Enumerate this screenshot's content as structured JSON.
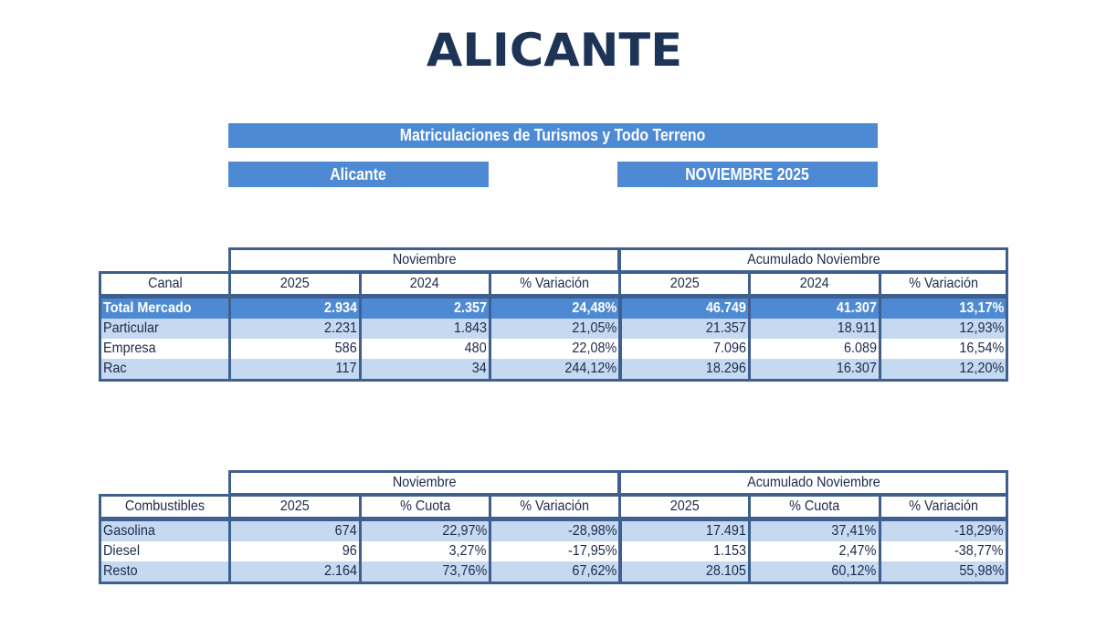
{
  "page": {
    "title": "ALICANTE"
  },
  "banners": {
    "title": "Matriculaciones de Turismos y Todo Terreno",
    "region": "Alicante",
    "period": "NOVIEMBRE 2025"
  },
  "colors": {
    "title_text": "#1e3457",
    "banner_bg": "#4e8ad4",
    "border": "#3f5f8e",
    "total_row_bg": "#4e8ad4",
    "alt_row_bg": "#c5d9f1"
  },
  "canal_table": {
    "groups": [
      "Noviembre",
      "Acumulado Noviembre"
    ],
    "columns": [
      "Canal",
      "2025",
      "2024",
      "% Variación",
      "2025",
      "2024",
      "% Variación"
    ],
    "rows": [
      {
        "label": "Total Mercado",
        "values": [
          "2.934",
          "2.357",
          "24,48%",
          "46.749",
          "41.307",
          "13,17%"
        ]
      },
      {
        "label": "Particular",
        "values": [
          "2.231",
          "1.843",
          "21,05%",
          "21.357",
          "18.911",
          "12,93%"
        ]
      },
      {
        "label": "Empresa",
        "values": [
          "586",
          "480",
          "22,08%",
          "7.096",
          "6.089",
          "16,54%"
        ]
      },
      {
        "label": "Rac",
        "values": [
          "117",
          "34",
          "244,12%",
          "18.296",
          "16.307",
          "12,20%"
        ]
      }
    ]
  },
  "fuel_table": {
    "groups": [
      "Noviembre",
      "Acumulado Noviembre"
    ],
    "columns": [
      "Combustibles",
      "2025",
      "% Cuota",
      "% Variación",
      "2025",
      "% Cuota",
      "% Variación"
    ],
    "rows": [
      {
        "label": "Gasolina",
        "values": [
          "674",
          "22,97%",
          "-28,98%",
          "17.491",
          "37,41%",
          "-18,29%"
        ]
      },
      {
        "label": "Diesel",
        "values": [
          "96",
          "3,27%",
          "-17,95%",
          "1.153",
          "2,47%",
          "-38,77%"
        ]
      },
      {
        "label": "Resto",
        "values": [
          "2.164",
          "73,76%",
          "67,62%",
          "28.105",
          "60,12%",
          "55,98%"
        ]
      }
    ]
  }
}
